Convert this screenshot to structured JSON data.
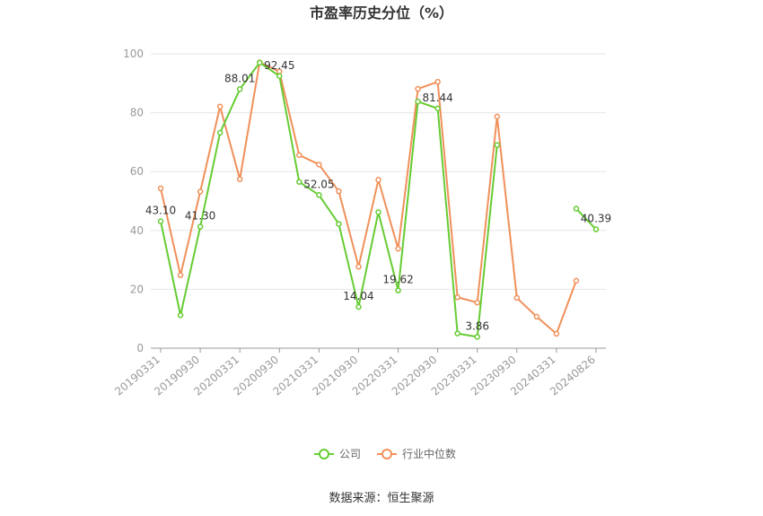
{
  "chart_data": {
    "type": "line",
    "title": "市盈率历史分位（%）",
    "source": "数据来源：恒生聚源",
    "ylim": [
      0,
      100
    ],
    "yticks": [
      0,
      20,
      40,
      60,
      80,
      100
    ],
    "grid": true,
    "legend_position": "bottom",
    "x": [
      "20190331",
      "20190630",
      "20190930",
      "20191231",
      "20200331",
      "20200630",
      "20200930",
      "20201231",
      "20210331",
      "20210630",
      "20210930",
      "20211231",
      "20220331",
      "20220630",
      "20220930",
      "20221231",
      "20230331",
      "20230630",
      "20230930",
      "20231231",
      "20240331",
      "20240630",
      "20240826"
    ],
    "xticks": [
      "20190331",
      "20190930",
      "20200331",
      "20200930",
      "20210331",
      "20210930",
      "20220331",
      "20220930",
      "20230331",
      "20230930",
      "20240331",
      "20240826"
    ],
    "series": [
      {
        "name": "公司",
        "color": "#66cc33",
        "values": [
          43.1,
          11.2,
          41.3,
          73.2,
          88.01,
          97.0,
          92.45,
          56.5,
          52.05,
          42.2,
          14.04,
          46.2,
          19.62,
          83.8,
          81.44,
          5.0,
          3.86,
          69.0,
          null,
          null,
          null,
          47.4,
          40.39
        ],
        "labels": {
          "0": "43.10",
          "2": "41.30",
          "4": "88.01",
          "6": "92.45",
          "8": "52.05",
          "10": "14.04",
          "12": "19.62",
          "14": "81.44",
          "16": "3.86",
          "22": "40.39"
        }
      },
      {
        "name": "行业中位数",
        "color": "#f0905a",
        "values": [
          54.3,
          24.8,
          53.2,
          82.1,
          57.4,
          97.1,
          94.0,
          65.6,
          62.4,
          53.3,
          27.7,
          57.2,
          33.8,
          88.1,
          90.5,
          17.3,
          15.5,
          78.7,
          17.1,
          10.7,
          4.9,
          22.9,
          null
        ]
      }
    ]
  }
}
